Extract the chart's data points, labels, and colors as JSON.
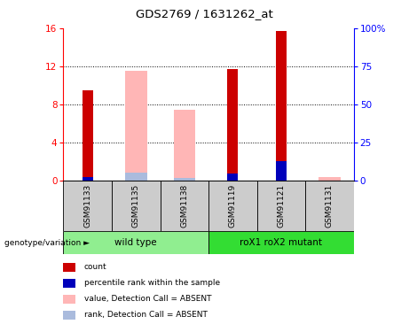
{
  "title": "GDS2769 / 1631262_at",
  "samples": [
    "GSM91133",
    "GSM91135",
    "GSM91138",
    "GSM91119",
    "GSM91121",
    "GSM91131"
  ],
  "groups": [
    {
      "label": "wild type",
      "color": "#90EE90",
      "count": 3
    },
    {
      "label": "roX1 roX2 mutant",
      "color": "#33DD33",
      "count": 3
    }
  ],
  "count_values": [
    9.5,
    0,
    0,
    11.7,
    15.7,
    0
  ],
  "percentile_values": [
    0.45,
    0,
    0,
    0.8,
    2.1,
    0
  ],
  "absent_value_values": [
    0,
    11.5,
    7.5,
    0,
    0,
    0.4
  ],
  "absent_rank_values": [
    0,
    0.9,
    0.35,
    0,
    0,
    0
  ],
  "ylim": [
    0,
    16
  ],
  "yticks_left": [
    0,
    4,
    8,
    12,
    16
  ],
  "yticks_right": [
    0,
    25,
    50,
    75,
    100
  ],
  "count_color": "#CC0000",
  "percentile_color": "#0000BB",
  "absent_value_color": "#FFB6B6",
  "absent_rank_color": "#AABBDD",
  "grid_lines": [
    4,
    8,
    12
  ],
  "legend_items": [
    {
      "label": "count",
      "color": "#CC0000"
    },
    {
      "label": "percentile rank within the sample",
      "color": "#0000BB"
    },
    {
      "label": "value, Detection Call = ABSENT",
      "color": "#FFB6B6"
    },
    {
      "label": "rank, Detection Call = ABSENT",
      "color": "#AABBDD"
    }
  ]
}
